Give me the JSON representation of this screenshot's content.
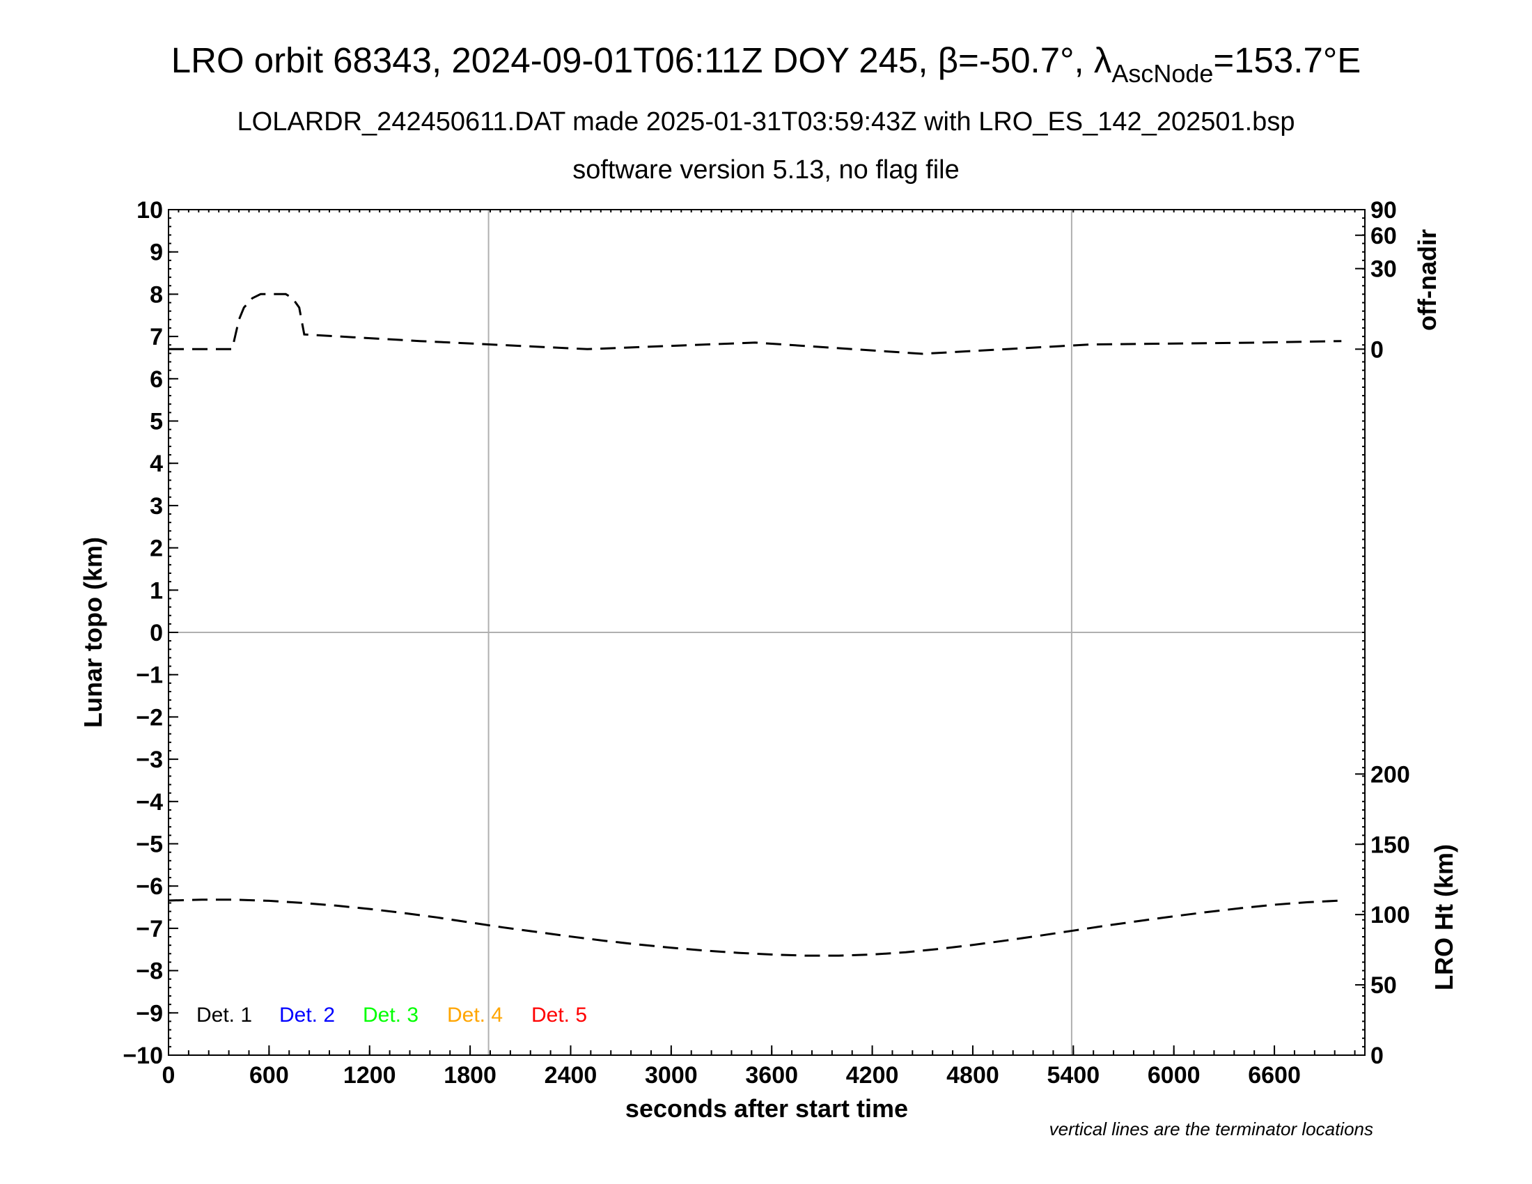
{
  "chart_data": {
    "type": "line",
    "title_main": "LRO orbit 68343, 2024-09-01T06:11Z DOY 245, β=-50.7°, λ",
    "title_sub": "AscNode",
    "title_end": "=153.7°E",
    "subtitle_1": "LOLARDR_242450611.DAT made 2025-01-31T03:59:43Z with LRO_ES_142_202501.bsp",
    "subtitle_2": "software version 5.13, no flag file",
    "xlabel": "seconds after start time",
    "ylabel_left": "Lunar topo (km)",
    "ylabel_right_top": "off-nadir",
    "ylabel_right_bottom": "LRO Ht (km)",
    "note": "vertical lines are the terminator locations",
    "xlim": [
      0,
      7140
    ],
    "ylim": [
      -10,
      10
    ],
    "x_ticks": [
      0,
      600,
      1200,
      1800,
      2400,
      3000,
      3600,
      4200,
      4800,
      5400,
      6000,
      6600
    ],
    "x_tick_labels": [
      "0",
      "600",
      "1200",
      "1800",
      "2400",
      "3000",
      "3600",
      "4200",
      "4800",
      "5400",
      "6000",
      "6600"
    ],
    "y_ticks": [
      10,
      9,
      8,
      7,
      6,
      5,
      4,
      3,
      2,
      1,
      0,
      -1,
      -2,
      -3,
      -4,
      -5,
      -6,
      -7,
      -8,
      -9,
      -10
    ],
    "y_tick_labels": [
      "10",
      "9",
      "8",
      "7",
      "6",
      "5",
      "4",
      "3",
      "2",
      "1",
      "0",
      "−1",
      "−2",
      "−3",
      "−4",
      "−5",
      "−6",
      "−7",
      "−8",
      "−9",
      "−10"
    ],
    "offnadir_ticks": [
      90,
      60,
      30,
      0
    ],
    "offnadir_tick_labels": [
      "90",
      "60",
      "30",
      "0"
    ],
    "height_ticks": [
      200,
      150,
      100,
      50,
      0
    ],
    "height_tick_labels": [
      "200",
      "150",
      "100",
      "50",
      "0"
    ],
    "terminator_lines_x": [
      1910,
      5390
    ],
    "grid_y": [
      0
    ],
    "legend": [
      {
        "label": "Det. 1",
        "color": "#000000"
      },
      {
        "label": "Det. 2",
        "color": "#0000ff"
      },
      {
        "label": "Det. 3",
        "color": "#00ff00"
      },
      {
        "label": "Det. 4",
        "color": "#ffa500"
      },
      {
        "label": "Det. 5",
        "color": "#ff0000"
      }
    ],
    "series": [
      {
        "type": "off_nadir_angle",
        "axis": "right-top",
        "unit": "deg",
        "x": [
          0,
          380,
          420,
          450,
          500,
          550,
          700,
          740,
          780,
          810,
          1500,
          2500,
          3500,
          4500,
          5500,
          6500,
          7000
        ],
        "values": [
          0,
          0,
          4,
          8,
          12,
          14,
          14,
          12,
          8,
          1,
          0.3,
          0.0,
          0.2,
          -0.1,
          0.1,
          0.2,
          0.3
        ]
      },
      {
        "type": "spacecraft_height",
        "axis": "right-bottom",
        "unit": "km",
        "x": [
          0,
          200,
          400,
          600,
          800,
          1000,
          1200,
          1400,
          1600,
          1800,
          2000,
          2200,
          2400,
          2600,
          2800,
          3000,
          3200,
          3400,
          3600,
          3800,
          4000,
          4200,
          4400,
          4600,
          4800,
          5000,
          5200,
          5400,
          5600,
          5800,
          6000,
          6200,
          6400,
          6600,
          6800,
          7000
        ],
        "values": [
          110.0,
          110.6,
          110.6,
          109.8,
          108.3,
          106.4,
          104.0,
          101.2,
          98.0,
          94.4,
          90.8,
          87.6,
          84.4,
          81.4,
          78.8,
          76.4,
          74.4,
          72.8,
          71.6,
          70.8,
          70.8,
          71.6,
          73.2,
          75.6,
          78.4,
          81.6,
          85.0,
          88.6,
          92.2,
          95.6,
          98.8,
          101.8,
          104.6,
          107.0,
          108.8,
          110.0
        ]
      }
    ]
  }
}
